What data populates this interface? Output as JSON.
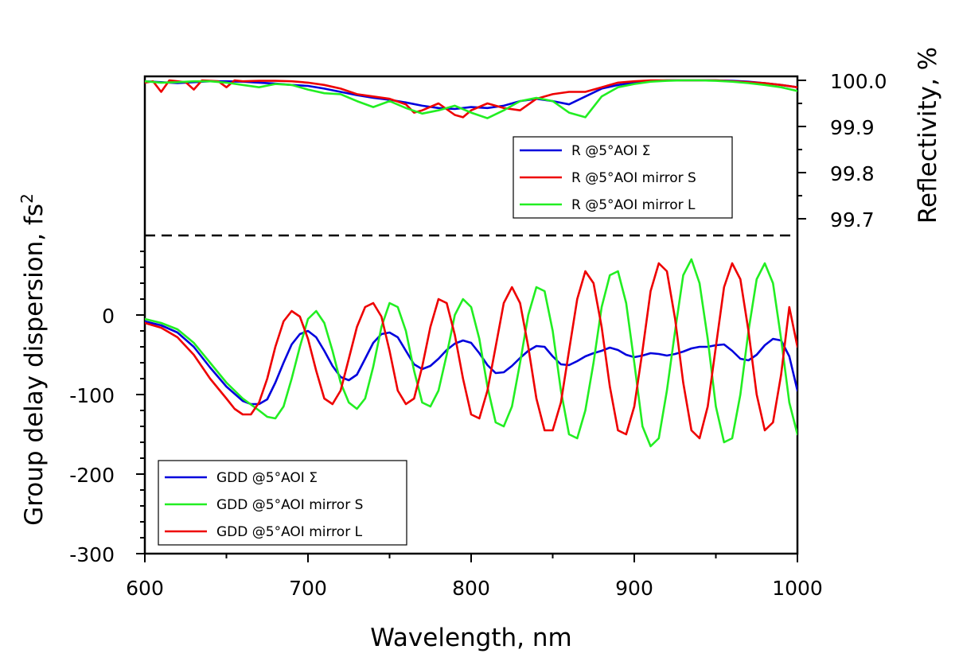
{
  "chart_data": {
    "type": "line",
    "x_axis": {
      "label": "Wavelength, nm",
      "range": [
        600,
        1000
      ],
      "ticks": [
        "600",
        "700",
        "800",
        "900",
        "1000"
      ]
    },
    "gdd_axis": {
      "label": "Group delay dispersion, fs",
      "label_superscript": "2",
      "range": [
        -300,
        90
      ],
      "ticks": [
        "0",
        "-100",
        "-200",
        "-300"
      ]
    },
    "reflectivity_axis": {
      "label": "Reflectivity, %",
      "range": [
        99.67,
        100.0
      ],
      "ticks": [
        "100.0",
        "99.9",
        "99.8",
        "99.7"
      ]
    },
    "reflectivity_series": [
      {
        "name": "R @5°AOI Σ",
        "color": "#0000dd",
        "x": [
          600,
          610,
          620,
          630,
          640,
          650,
          660,
          670,
          680,
          690,
          700,
          710,
          720,
          730,
          740,
          750,
          760,
          770,
          780,
          790,
          800,
          810,
          820,
          830,
          840,
          850,
          860,
          870,
          880,
          890,
          900,
          910,
          920,
          930,
          940,
          950,
          960,
          970,
          980,
          990,
          1000
        ],
        "y": [
          99.998,
          99.996,
          99.994,
          99.996,
          99.998,
          99.998,
          99.997,
          99.995,
          99.993,
          99.99,
          99.988,
          99.982,
          99.975,
          99.968,
          99.962,
          99.958,
          99.952,
          99.945,
          99.94,
          99.938,
          99.942,
          99.94,
          99.945,
          99.955,
          99.96,
          99.955,
          99.948,
          99.965,
          99.982,
          99.99,
          99.995,
          99.998,
          100.0,
          100.0,
          100.0,
          100.0,
          99.999,
          99.997,
          99.994,
          99.99,
          99.985
        ]
      },
      {
        "name": "R @5°AOI mirror S",
        "color": "#ee0000",
        "x": [
          600,
          605,
          610,
          615,
          620,
          625,
          630,
          635,
          640,
          645,
          650,
          655,
          660,
          670,
          680,
          690,
          700,
          710,
          720,
          730,
          740,
          750,
          760,
          765,
          770,
          780,
          790,
          795,
          800,
          810,
          820,
          830,
          840,
          850,
          860,
          870,
          880,
          890,
          900,
          910,
          920,
          930,
          940,
          950,
          960,
          970,
          980,
          990,
          1000
        ],
        "y": [
          99.995,
          99.998,
          99.975,
          100.0,
          99.998,
          99.996,
          99.98,
          100.0,
          99.999,
          99.998,
          99.985,
          100.0,
          99.998,
          99.999,
          99.999,
          99.998,
          99.995,
          99.99,
          99.982,
          99.97,
          99.965,
          99.96,
          99.948,
          99.93,
          99.935,
          99.95,
          99.925,
          99.92,
          99.935,
          99.95,
          99.94,
          99.935,
          99.96,
          99.97,
          99.975,
          99.975,
          99.985,
          99.995,
          99.998,
          100.0,
          100.0,
          100.0,
          100.0,
          100.0,
          99.998,
          99.996,
          99.994,
          99.99,
          99.985
        ]
      },
      {
        "name": "R @5°AOI mirror L",
        "color": "#22ee22",
        "x": [
          600,
          610,
          620,
          630,
          640,
          650,
          660,
          670,
          680,
          690,
          700,
          710,
          720,
          730,
          740,
          750,
          760,
          770,
          780,
          790,
          800,
          810,
          820,
          830,
          840,
          850,
          860,
          870,
          880,
          890,
          900,
          910,
          920,
          930,
          940,
          950,
          960,
          970,
          980,
          990,
          1000
        ],
        "y": [
          99.998,
          99.995,
          99.996,
          99.998,
          99.998,
          99.995,
          99.99,
          99.985,
          99.992,
          99.99,
          99.98,
          99.972,
          99.97,
          99.955,
          99.942,
          99.955,
          99.94,
          99.928,
          99.935,
          99.945,
          99.93,
          99.918,
          99.935,
          99.955,
          99.962,
          99.955,
          99.93,
          99.92,
          99.965,
          99.985,
          99.992,
          99.997,
          99.999,
          100.0,
          100.0,
          99.999,
          99.997,
          99.994,
          99.99,
          99.985,
          99.977
        ]
      }
    ],
    "gdd_series": [
      {
        "name": "GDD @5°AOI Σ",
        "color": "#0000dd",
        "x": [
          600,
          610,
          620,
          630,
          640,
          650,
          660,
          665,
          670,
          675,
          680,
          685,
          690,
          695,
          700,
          705,
          710,
          715,
          720,
          725,
          730,
          735,
          740,
          745,
          750,
          755,
          760,
          765,
          770,
          775,
          780,
          785,
          790,
          795,
          800,
          805,
          810,
          815,
          820,
          825,
          830,
          835,
          840,
          845,
          850,
          855,
          860,
          865,
          870,
          875,
          880,
          885,
          890,
          895,
          900,
          905,
          910,
          915,
          920,
          925,
          930,
          935,
          940,
          945,
          950,
          955,
          960,
          965,
          970,
          975,
          980,
          985,
          990,
          995,
          1000
        ],
        "y": [
          -8,
          -13,
          -22,
          -40,
          -66,
          -90,
          -108,
          -112,
          -112,
          -106,
          -85,
          -60,
          -37,
          -24,
          -20,
          -28,
          -45,
          -64,
          -78,
          -82,
          -75,
          -55,
          -35,
          -24,
          -22,
          -28,
          -45,
          -62,
          -68,
          -64,
          -55,
          -44,
          -36,
          -32,
          -35,
          -48,
          -63,
          -73,
          -72,
          -64,
          -54,
          -45,
          -39,
          -40,
          -52,
          -62,
          -63,
          -58,
          -52,
          -48,
          -45,
          -41,
          -44,
          -50,
          -53,
          -51,
          -48,
          -49,
          -51,
          -49,
          -46,
          -42,
          -40,
          -40,
          -38,
          -37,
          -45,
          -55,
          -57,
          -50,
          -38,
          -30,
          -32,
          -52,
          -95
        ]
      },
      {
        "name": "GDD @5°AOI mirror S",
        "color": "#22ee22",
        "x": [
          600,
          610,
          620,
          630,
          640,
          650,
          660,
          670,
          675,
          680,
          685,
          690,
          695,
          700,
          705,
          710,
          715,
          720,
          725,
          730,
          735,
          740,
          745,
          750,
          755,
          760,
          765,
          770,
          775,
          780,
          785,
          790,
          795,
          800,
          805,
          810,
          815,
          820,
          825,
          830,
          835,
          840,
          845,
          850,
          855,
          860,
          865,
          870,
          875,
          880,
          885,
          890,
          895,
          900,
          905,
          910,
          915,
          920,
          925,
          930,
          935,
          940,
          945,
          950,
          955,
          960,
          965,
          970,
          975,
          980,
          985,
          990,
          995,
          1000
        ],
        "y": [
          -5,
          -10,
          -18,
          -35,
          -60,
          -85,
          -105,
          -120,
          -128,
          -130,
          -115,
          -80,
          -40,
          -5,
          5,
          -10,
          -45,
          -85,
          -110,
          -118,
          -105,
          -65,
          -15,
          15,
          10,
          -20,
          -70,
          -110,
          -115,
          -95,
          -50,
          0,
          20,
          10,
          -30,
          -90,
          -135,
          -140,
          -115,
          -60,
          0,
          35,
          30,
          -20,
          -95,
          -150,
          -155,
          -120,
          -60,
          10,
          50,
          55,
          15,
          -60,
          -140,
          -165,
          -155,
          -95,
          -20,
          50,
          70,
          40,
          -30,
          -115,
          -160,
          -155,
          -100,
          -20,
          45,
          65,
          40,
          -30,
          -110,
          -150
        ]
      },
      {
        "name": "GDD @5°AOI mirror L",
        "color": "#ee0000",
        "x": [
          600,
          610,
          620,
          630,
          640,
          650,
          655,
          660,
          665,
          670,
          675,
          680,
          685,
          690,
          695,
          700,
          705,
          710,
          715,
          720,
          725,
          730,
          735,
          740,
          745,
          750,
          755,
          760,
          765,
          770,
          775,
          780,
          785,
          790,
          795,
          800,
          805,
          810,
          815,
          820,
          825,
          830,
          835,
          840,
          845,
          850,
          855,
          860,
          865,
          870,
          875,
          880,
          885,
          890,
          895,
          900,
          905,
          910,
          915,
          920,
          925,
          930,
          935,
          940,
          945,
          950,
          955,
          960,
          965,
          970,
          975,
          980,
          985,
          990,
          995,
          1000
        ],
        "y": [
          -10,
          -16,
          -28,
          -50,
          -80,
          -105,
          -118,
          -125,
          -125,
          -110,
          -80,
          -40,
          -8,
          5,
          -2,
          -30,
          -70,
          -105,
          -112,
          -95,
          -55,
          -15,
          10,
          15,
          -2,
          -45,
          -95,
          -112,
          -105,
          -65,
          -15,
          20,
          15,
          -25,
          -80,
          -125,
          -130,
          -95,
          -40,
          15,
          35,
          15,
          -40,
          -105,
          -145,
          -145,
          -110,
          -45,
          20,
          55,
          40,
          -15,
          -90,
          -145,
          -150,
          -115,
          -45,
          30,
          65,
          55,
          -5,
          -85,
          -145,
          -155,
          -115,
          -40,
          35,
          65,
          45,
          -20,
          -100,
          -145,
          -135,
          -75,
          10,
          -40
        ]
      }
    ]
  }
}
